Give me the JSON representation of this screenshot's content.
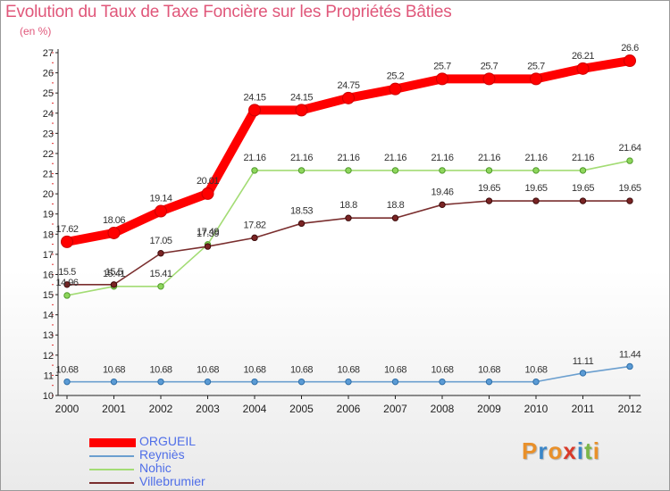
{
  "chart_data": {
    "type": "line",
    "title": "Evolution du Taux de Taxe Foncière sur les Propriétés Bâties",
    "subtitle": "(en %)",
    "xlabel": "",
    "ylabel": "(en %)",
    "ylim": [
      10,
      27
    ],
    "yticks": [
      "10",
      "11",
      "12",
      "13",
      "14",
      "15",
      "16",
      "17",
      "18",
      "19",
      "20",
      "21",
      "22",
      "23",
      "24",
      "25",
      "26",
      "27"
    ],
    "categories": [
      "2000",
      "2001",
      "2002",
      "2003",
      "2004",
      "2005",
      "2006",
      "2007",
      "2008",
      "2009",
      "2010",
      "2011",
      "2012"
    ],
    "grid": false,
    "legend_position": "bottom-left",
    "series": [
      {
        "name": "ORGUEIL",
        "color": "#ff0000",
        "values": [
          17.62,
          18.06,
          19.14,
          20.01,
          24.15,
          24.15,
          24.75,
          25.2,
          25.7,
          25.7,
          25.7,
          26.21,
          26.6
        ],
        "labels": [
          "17.62",
          "18.06",
          "19.14",
          "20.01",
          "24.15",
          "24.15",
          "24.75",
          "25.2",
          "25.7",
          "25.7",
          "25.7",
          "26.21",
          "26.6"
        ]
      },
      {
        "name": "Reyniès",
        "color": "#6b9fcf",
        "values": [
          10.68,
          10.68,
          10.68,
          10.68,
          10.68,
          10.68,
          10.68,
          10.68,
          10.68,
          10.68,
          10.68,
          11.11,
          11.44
        ],
        "labels": [
          "10.68",
          "10.68",
          "10.68",
          "10.68",
          "10.68",
          "10.68",
          "10.68",
          "10.68",
          "10.68",
          "10.68",
          "10.68",
          "11.11",
          "11.44"
        ]
      },
      {
        "name": "Nohic",
        "color": "#a3dc74",
        "values": [
          14.96,
          15.41,
          15.41,
          17.49,
          21.16,
          21.16,
          21.16,
          21.16,
          21.16,
          21.16,
          21.16,
          21.16,
          21.64
        ],
        "labels": [
          "14.96",
          "15.41",
          "15.41",
          "17.49",
          "21.16",
          "21.16",
          "21.16",
          "21.16",
          "21.16",
          "21.16",
          "21.16",
          "21.16",
          "21.64"
        ]
      },
      {
        "name": "Villebrumier",
        "color": "#7a2e2e",
        "values": [
          15.5,
          15.5,
          17.05,
          17.39,
          17.82,
          18.53,
          18.8,
          18.8,
          19.46,
          19.65,
          19.65,
          19.65,
          19.65
        ],
        "labels": [
          "15.5",
          "15.5",
          "17.05",
          "17.39",
          "17.82",
          "18.53",
          "18.8",
          "18.8",
          "19.46",
          "19.65",
          "19.65",
          "19.65",
          "19.65"
        ]
      }
    ]
  },
  "brand": {
    "letters": [
      "P",
      "r",
      "o",
      "x",
      "i",
      "t",
      "i"
    ],
    "colors": [
      "#e9902a",
      "#3a86c8",
      "#e9902a",
      "#d93a2a",
      "#3a86c8",
      "#7ab648",
      "#e9902a"
    ]
  }
}
